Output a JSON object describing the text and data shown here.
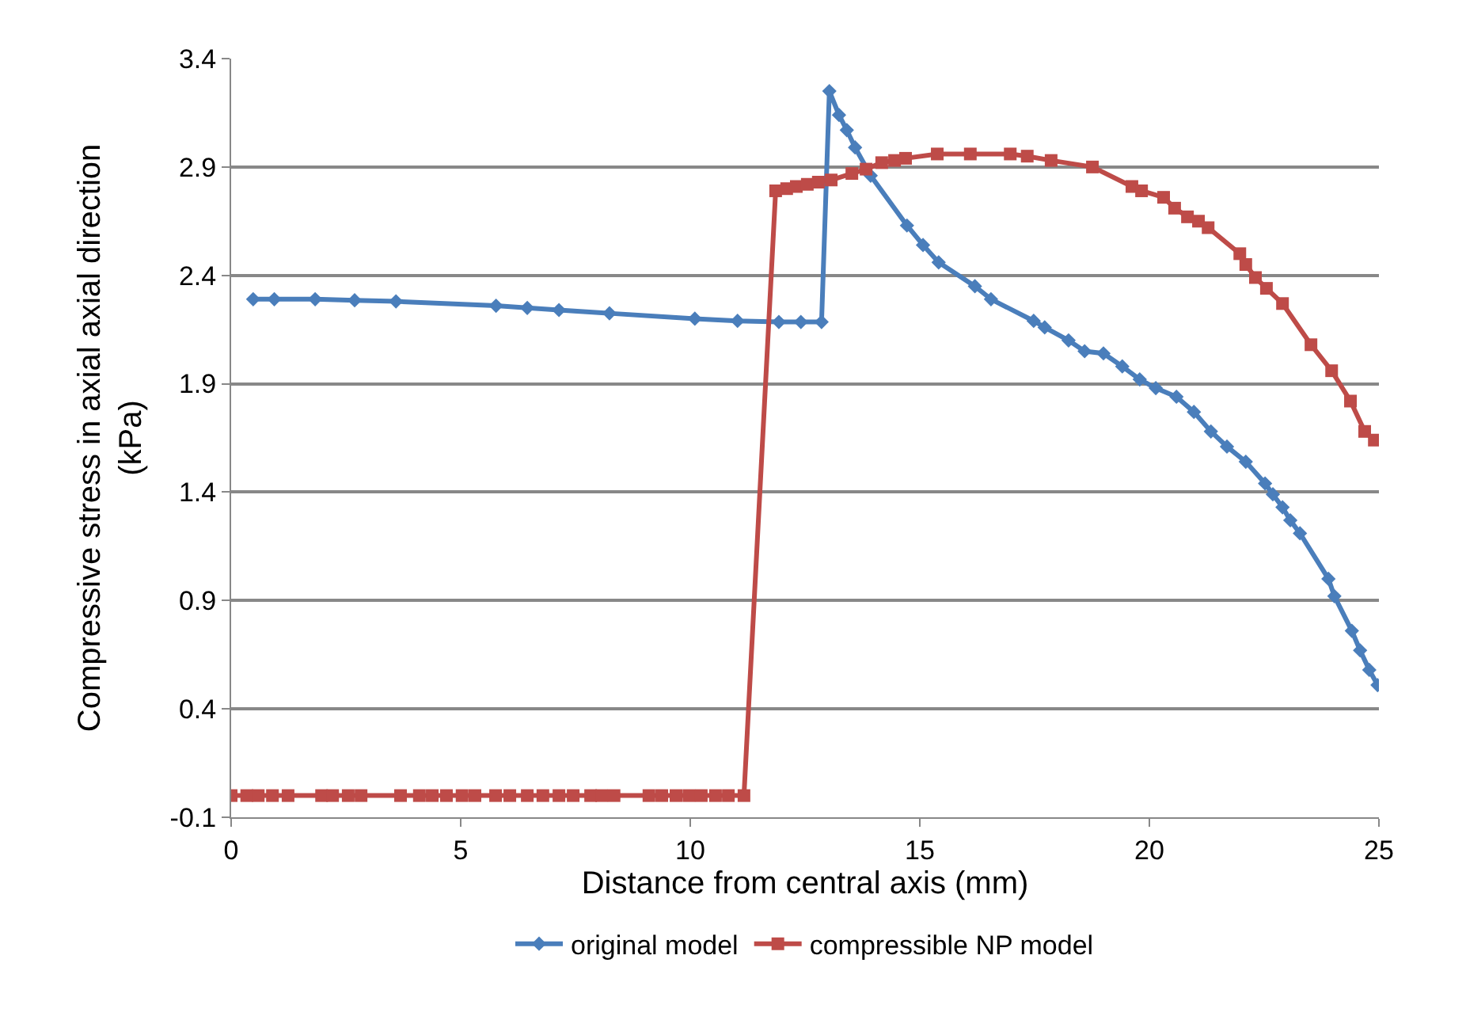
{
  "chart_data": {
    "type": "line",
    "xlabel": "Distance from central axis (mm)",
    "ylabel": "Compressive stress in axial axial direction\n(kPa)",
    "xlim": [
      0,
      25
    ],
    "xticks": [
      0,
      5,
      10,
      15,
      20,
      25
    ],
    "ylim": [
      -0.1,
      3.4
    ],
    "yticks": [
      -0.1,
      0.4,
      0.9,
      1.4,
      1.9,
      2.4,
      2.9,
      3.4
    ],
    "grid": "y",
    "legend": "bottom",
    "series": [
      {
        "name": "original model",
        "color": "#4a7ebb",
        "marker": "diamond",
        "x": [
          0.48,
          0.94,
          1.83,
          2.69,
          3.59,
          5.77,
          6.45,
          7.14,
          8.24,
          10.1,
          11.03,
          11.93,
          12.41,
          12.86,
          13.03,
          13.24,
          13.41,
          13.59,
          13.93,
          14.72,
          15.07,
          15.41,
          16.2,
          16.55,
          17.48,
          17.72,
          18.24,
          18.59,
          19.0,
          19.41,
          19.79,
          20.14,
          20.59,
          20.97,
          21.34,
          21.69,
          22.1,
          22.52,
          22.69,
          22.9,
          23.07,
          23.28,
          23.9,
          24.03,
          24.41,
          24.59,
          24.79,
          24.97
        ],
        "values": [
          2.29,
          2.29,
          2.29,
          2.285,
          2.28,
          2.26,
          2.25,
          2.24,
          2.225,
          2.2,
          2.19,
          2.185,
          2.185,
          2.185,
          3.25,
          3.14,
          3.07,
          2.99,
          2.86,
          2.63,
          2.54,
          2.46,
          2.35,
          2.29,
          2.19,
          2.16,
          2.1,
          2.05,
          2.04,
          1.98,
          1.92,
          1.88,
          1.84,
          1.77,
          1.68,
          1.61,
          1.54,
          1.44,
          1.39,
          1.33,
          1.27,
          1.21,
          1.0,
          0.92,
          0.76,
          0.67,
          0.58,
          0.51
        ]
      },
      {
        "name": "compressible NP model",
        "color": "#be4b48",
        "marker": "square",
        "x": [
          0,
          0.34,
          0.59,
          0.9,
          1.24,
          1.97,
          2.21,
          2.55,
          2.83,
          3.69,
          4.1,
          4.38,
          4.69,
          5.03,
          5.31,
          5.76,
          6.07,
          6.45,
          6.79,
          7.14,
          7.45,
          7.83,
          8.07,
          8.34,
          9.1,
          9.38,
          9.69,
          9.97,
          10.24,
          10.55,
          10.83,
          11.17,
          11.86,
          12.1,
          12.31,
          12.55,
          12.79,
          13.07,
          13.52,
          13.83,
          14.17,
          14.45,
          14.69,
          15.38,
          16.1,
          16.97,
          17.34,
          17.86,
          18.76,
          19.62,
          19.83,
          20.31,
          20.55,
          20.83,
          21.07,
          21.28,
          21.97,
          22.1,
          22.31,
          22.55,
          22.9,
          23.52,
          23.97,
          24.38,
          24.69,
          24.9
        ],
        "values": [
          0,
          0,
          0,
          0,
          0,
          0,
          0,
          0,
          0,
          0,
          0,
          0,
          0,
          0,
          0,
          0,
          0,
          0,
          0,
          0,
          0,
          0,
          0,
          0,
          0,
          0,
          0,
          0,
          0,
          0,
          0,
          0,
          2.79,
          2.8,
          2.81,
          2.82,
          2.83,
          2.84,
          2.87,
          2.89,
          2.92,
          2.93,
          2.94,
          2.96,
          2.96,
          2.96,
          2.95,
          2.93,
          2.9,
          2.81,
          2.79,
          2.76,
          2.71,
          2.67,
          2.65,
          2.62,
          2.5,
          2.45,
          2.39,
          2.34,
          2.27,
          2.08,
          1.96,
          1.82,
          1.68,
          1.64
        ]
      }
    ]
  }
}
